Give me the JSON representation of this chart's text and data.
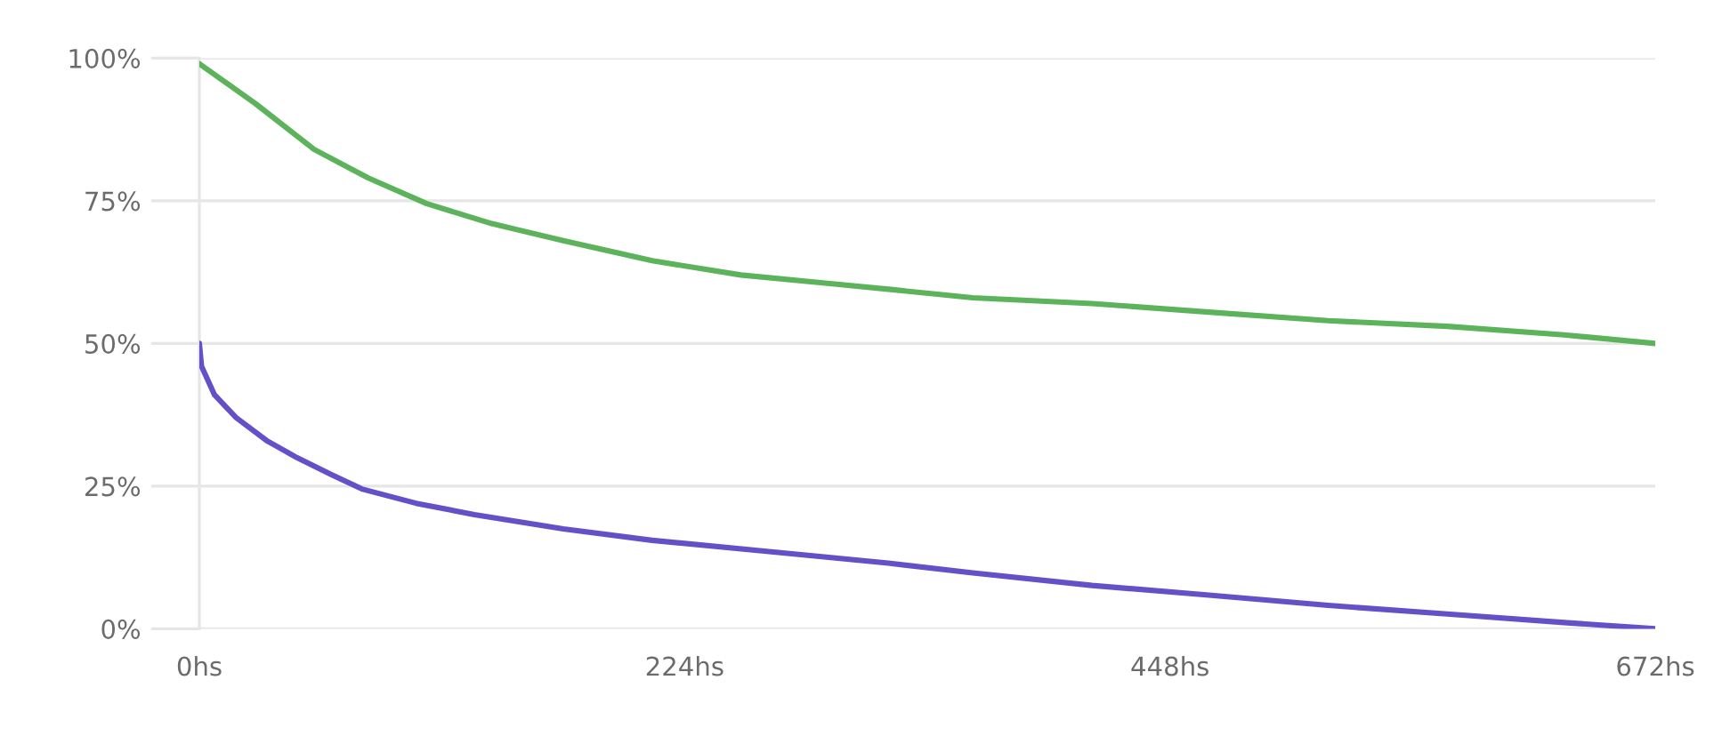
{
  "chart_data": {
    "type": "line",
    "series": [
      {
        "color": "#5cb35c",
        "x": [
          0,
          26,
          53,
          78,
          105,
          135,
          168,
          209,
          250,
          291,
          318,
          357,
          412,
          466,
          521,
          576,
          630,
          672
        ],
        "values": [
          99,
          92,
          84,
          79,
          74.5,
          71,
          68,
          64.5,
          62,
          60.5,
          59.5,
          58,
          57,
          55.5,
          54,
          53,
          51.5,
          50
        ]
      },
      {
        "color": "#6650c8",
        "x": [
          0,
          1,
          7,
          17,
          31,
          45,
          61,
          75,
          100,
          127,
          168,
          209,
          264,
          318,
          357,
          412,
          466,
          521,
          576,
          630,
          672
        ],
        "values": [
          50,
          46,
          41,
          37,
          33,
          30,
          27,
          24.5,
          22,
          20,
          17.5,
          15.5,
          13.5,
          11.5,
          9.8,
          7.6,
          5.9,
          4.1,
          2.6,
          1.1,
          0
        ]
      }
    ],
    "xlim": [
      0,
      672
    ],
    "xticks": [
      {
        "value": 0,
        "label": "0hs"
      },
      {
        "value": 224,
        "label": "224hs"
      },
      {
        "value": 448,
        "label": "448hs"
      },
      {
        "value": 672,
        "label": "672hs"
      }
    ],
    "ylim": [
      0,
      100
    ],
    "yticks": [
      {
        "value": 0,
        "label": "0%"
      },
      {
        "value": 25,
        "label": "25%"
      },
      {
        "value": 50,
        "label": "50%"
      },
      {
        "value": 75,
        "label": "75%"
      },
      {
        "value": 100,
        "label": "100%"
      }
    ],
    "grid": "y",
    "line_style": "solid"
  }
}
